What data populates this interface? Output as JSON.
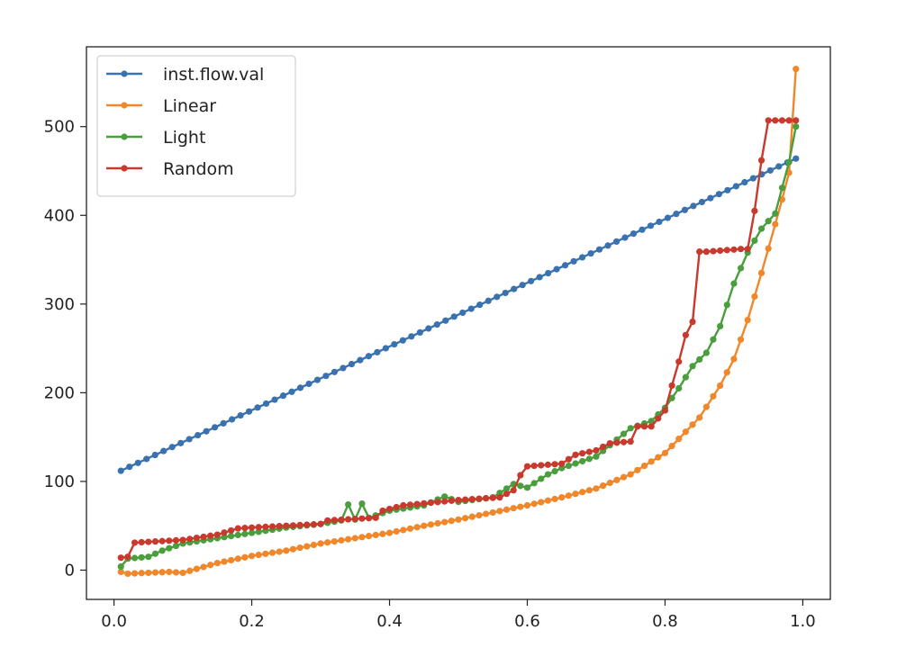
{
  "chart_data": {
    "type": "line",
    "title": "",
    "xlabel": "",
    "ylabel": "",
    "xlim": [
      -0.04,
      1.04
    ],
    "ylim": [
      -33,
      590
    ],
    "xticks": [
      0.0,
      0.2,
      0.4,
      0.6,
      0.8,
      1.0
    ],
    "xtick_labels": [
      "0.0",
      "0.2",
      "0.4",
      "0.6",
      "0.8",
      "1.0"
    ],
    "yticks": [
      0,
      100,
      200,
      300,
      400,
      500
    ],
    "ytick_labels": [
      "0",
      "100",
      "200",
      "300",
      "400",
      "500"
    ],
    "grid": false,
    "legend_position": "top-left",
    "markers": true,
    "series": [
      {
        "name": "inst.flow.val",
        "color": "#3a72b0",
        "x": [
          0.01,
          0.99
        ],
        "y": [
          112,
          464
        ],
        "interpolate": "linear"
      },
      {
        "name": "Linear",
        "color": "#f0872a",
        "x": [
          0.01,
          0.02,
          0.05,
          0.08,
          0.1,
          0.15,
          0.2,
          0.25,
          0.3,
          0.35,
          0.4,
          0.45,
          0.5,
          0.55,
          0.6,
          0.65,
          0.7,
          0.75,
          0.8,
          0.85,
          0.88,
          0.9,
          0.92,
          0.94,
          0.96,
          0.97,
          0.98,
          0.99
        ],
        "y": [
          -2,
          -4,
          -3,
          -2,
          -3,
          8,
          16,
          22,
          30,
          36,
          42,
          50,
          57,
          65,
          73,
          82,
          92,
          108,
          132,
          172,
          208,
          238,
          282,
          335,
          390,
          418,
          448,
          565
        ],
        "interpolate": "linear"
      },
      {
        "name": "Light",
        "color": "#4a9e3d",
        "x": [
          0.01,
          0.02,
          0.05,
          0.07,
          0.1,
          0.15,
          0.2,
          0.25,
          0.3,
          0.33,
          0.34,
          0.35,
          0.36,
          0.37,
          0.4,
          0.45,
          0.48,
          0.5,
          0.55,
          0.58,
          0.6,
          0.63,
          0.65,
          0.7,
          0.75,
          0.78,
          0.8,
          0.82,
          0.84,
          0.86,
          0.88,
          0.9,
          0.92,
          0.94,
          0.96,
          0.98,
          0.99
        ],
        "y": [
          4,
          13,
          15,
          22,
          30,
          36,
          42,
          48,
          52,
          56,
          74,
          57,
          75,
          59,
          67,
          73,
          83,
          77,
          82,
          97,
          93,
          108,
          115,
          128,
          160,
          168,
          183,
          205,
          230,
          245,
          275,
          323,
          358,
          385,
          402,
          460,
          500
        ],
        "interpolate": "linear"
      },
      {
        "name": "Random",
        "color": "#c83a2e",
        "x": [
          0.01,
          0.02,
          0.03,
          0.1,
          0.15,
          0.18,
          0.2,
          0.25,
          0.3,
          0.31,
          0.38,
          0.39,
          0.42,
          0.5,
          0.56,
          0.58,
          0.59,
          0.6,
          0.65,
          0.67,
          0.7,
          0.72,
          0.75,
          0.76,
          0.78,
          0.8,
          0.81,
          0.82,
          0.83,
          0.84,
          0.85,
          0.86,
          0.91,
          0.92,
          0.93,
          0.94,
          0.95,
          0.99
        ],
        "y": [
          14,
          15,
          31,
          34,
          40,
          47,
          48,
          50,
          52,
          56,
          59,
          67,
          73,
          79,
          82,
          90,
          107,
          117,
          120,
          130,
          135,
          143,
          145,
          162,
          162,
          180,
          208,
          235,
          265,
          280,
          359,
          359,
          362,
          362,
          405,
          462,
          507,
          507
        ],
        "interpolate": "linear"
      }
    ]
  }
}
